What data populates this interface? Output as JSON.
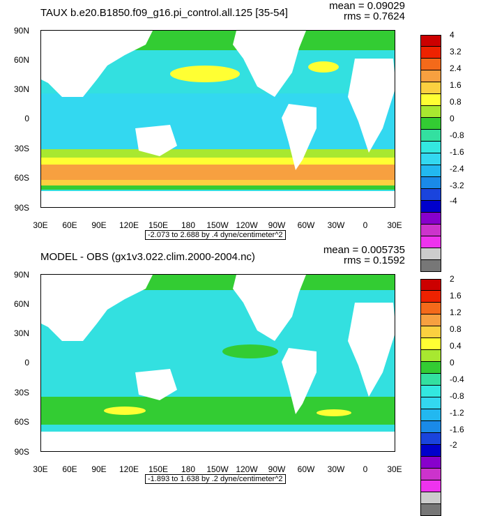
{
  "panels": [
    {
      "title": "TAUX b.e20.B1850.f09_g16.pi_control.all.125 [35-54]",
      "mean": "mean = 0.09029",
      "rms": "rms = 0.7624",
      "contour_info": "-2.073 to 2.688 by .4 dyne/centimeter^2",
      "colorbar_labels": [
        "4",
        "3.2",
        "2.4",
        "1.6",
        "0.8",
        "0",
        "-0.8",
        "-1.6",
        "-2.4",
        "-3.2",
        "-4"
      ],
      "colorbar_colors": [
        "#cc0000",
        "#ee2200",
        "#f46a1a",
        "#f7a040",
        "#fbd040",
        "#ffff33",
        "#a8e830",
        "#33cc33",
        "#33e0a0",
        "#33e8e0",
        "#33d8f0",
        "#22b8f0",
        "#1a8ae8",
        "#1a44dd",
        "#0000cc",
        "#8800cc",
        "#cc33cc",
        "#ee33ee",
        "#cccccc",
        "#777777"
      ]
    },
    {
      "title": "MODEL - OBS (gx1v3.022.clim.2000-2004.nc)",
      "mean": "mean = 0.005735",
      "rms": "rms = 0.1592",
      "contour_info": "-1.893 to 1.638 by .2 dyne/centimeter^2",
      "colorbar_labels": [
        "2",
        "1.6",
        "1.2",
        "0.8",
        "0.4",
        "0",
        "-0.4",
        "-0.8",
        "-1.2",
        "-1.6",
        "-2"
      ],
      "colorbar_colors": [
        "#cc0000",
        "#ee2200",
        "#f46a1a",
        "#f7a040",
        "#fbd040",
        "#ffff33",
        "#a8e830",
        "#33cc33",
        "#33e0a0",
        "#33e8e0",
        "#33d8f0",
        "#22b8f0",
        "#1a8ae8",
        "#1a44dd",
        "#0000cc",
        "#8800cc",
        "#cc33cc",
        "#ee33ee",
        "#cccccc",
        "#777777"
      ]
    }
  ],
  "lat_labels": [
    "90N",
    "60N",
    "30N",
    "0",
    "30S",
    "60S",
    "90S"
  ],
  "lon_labels": [
    "30E",
    "60E",
    "90E",
    "120E",
    "150E",
    "180",
    "150W",
    "120W",
    "90W",
    "60W",
    "30W",
    "0",
    "30E"
  ]
}
